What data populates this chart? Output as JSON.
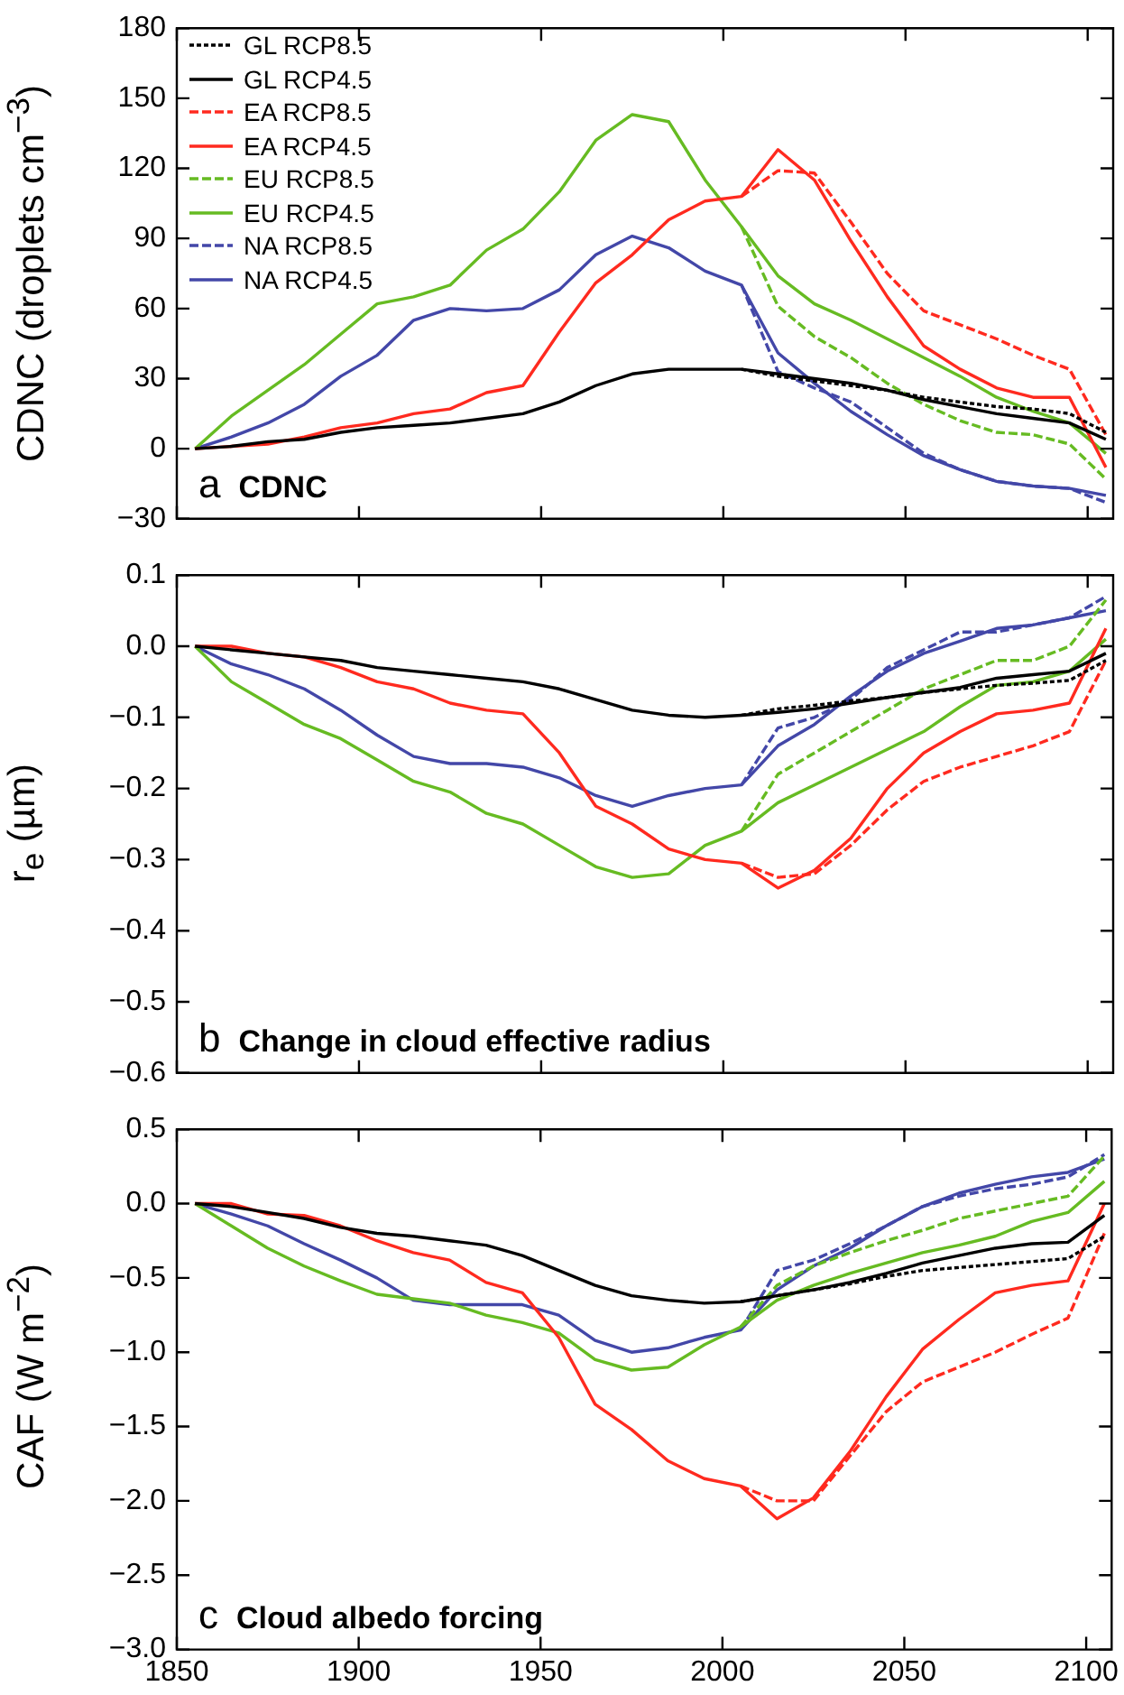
{
  "chart_data": [
    {
      "type": "line",
      "title": "CDNC",
      "ylabel": "CDNC (droplets cm$^{−3}$)",
      "annotations": [
        "a"
      ],
      "legend": "top left",
      "tick_labels": "y",
      "x": [
        1855,
        1865,
        1875,
        1885,
        1895,
        1905,
        1915,
        1925,
        1935,
        1945,
        1955,
        1965,
        1975,
        1985,
        1995,
        2005,
        2015,
        2025,
        2035,
        2045,
        2055,
        2065,
        2075,
        2085,
        2095,
        2105
      ],
      "xlim": [
        1850,
        2107
      ],
      "xticks": [
        1850,
        1900,
        1950,
        2000,
        2050,
        2100
      ],
      "ylim": [
        -30,
        180
      ],
      "yticks": [
        {
          "value": -30,
          "label": "−30"
        },
        0,
        30,
        60,
        90,
        120,
        150,
        180
      ],
      "series": [
        {
          "name": "GL RCP8.5",
          "color": "#000000",
          "line_style": "dotted",
          "x": [
            2005,
            2015,
            2025,
            2035,
            2045,
            2055,
            2065,
            2075,
            2085,
            2095,
            2105
          ],
          "values": [
            34,
            31,
            29,
            27,
            25,
            22,
            20,
            18,
            17,
            15,
            7
          ]
        },
        {
          "name": "GL RCP4.5",
          "color": "#000000",
          "line_style": "solid",
          "values": [
            0,
            1,
            3,
            4,
            7,
            9,
            10,
            11,
            13,
            15,
            20,
            27,
            32,
            34,
            34,
            34,
            32,
            30,
            28,
            25,
            21,
            18,
            15,
            13,
            11,
            4
          ]
        },
        {
          "name": "EA RCP8.5",
          "color": "#ff2a1f",
          "line_style": "dashed",
          "x": [
            2005,
            2015,
            2025,
            2035,
            2045,
            2055,
            2065,
            2075,
            2085,
            2095,
            2105
          ],
          "values": [
            108,
            119,
            118,
            97,
            75,
            59,
            53,
            47,
            40,
            34,
            6
          ]
        },
        {
          "name": "EA RCP4.5",
          "color": "#ff2a1f",
          "line_style": "solid",
          "values": [
            0,
            1,
            2,
            5,
            9,
            11,
            15,
            17,
            24,
            27,
            50,
            71,
            83,
            98,
            106,
            108,
            128,
            115,
            89,
            65,
            44,
            34,
            26,
            22,
            22,
            -8
          ]
        },
        {
          "name": "EU RCP8.5",
          "color": "#66bb22",
          "line_style": "dashed",
          "x": [
            2005,
            2015,
            2025,
            2035,
            2045,
            2055,
            2065,
            2075,
            2085,
            2095,
            2105
          ],
          "values": [
            95,
            61,
            48,
            39,
            28,
            19,
            12,
            7,
            6,
            2,
            -13
          ]
        },
        {
          "name": "EU RCP4.5",
          "color": "#66bb22",
          "line_style": "solid",
          "values": [
            0,
            14,
            25,
            36,
            49,
            62,
            65,
            70,
            85,
            94,
            110,
            132,
            143,
            140,
            115,
            95,
            74,
            62,
            55,
            47,
            39,
            31,
            22,
            16,
            11,
            -2
          ]
        },
        {
          "name": "NA RCP8.5",
          "color": "#4347a8",
          "line_style": "dashed",
          "x": [
            2005,
            2015,
            2025,
            2035,
            2045,
            2055,
            2065,
            2075,
            2085,
            2095,
            2105
          ],
          "values": [
            70,
            33,
            26,
            20,
            9,
            -2,
            -9,
            -14,
            -16,
            -17,
            -23
          ]
        },
        {
          "name": "NA RCP4.5",
          "color": "#4347a8",
          "line_style": "solid",
          "values": [
            0,
            5,
            11,
            19,
            31,
            40,
            55,
            60,
            59,
            60,
            68,
            83,
            91,
            86,
            76,
            70,
            41,
            28,
            16,
            6,
            -3,
            -9,
            -14,
            -16,
            -17,
            -20
          ]
        }
      ]
    },
    {
      "type": "line",
      "title": "Change in cloud effective radius",
      "ylabel": "r$_{e}$ (µm)",
      "annotations": [
        "b"
      ],
      "tick_labels": "y",
      "x": [
        1855,
        1865,
        1875,
        1885,
        1895,
        1905,
        1915,
        1925,
        1935,
        1945,
        1955,
        1965,
        1975,
        1985,
        1995,
        2005,
        2015,
        2025,
        2035,
        2045,
        2055,
        2065,
        2075,
        2085,
        2095,
        2105
      ],
      "xlim": [
        1850,
        2107
      ],
      "xticks": [
        1850,
        1900,
        1950,
        2000,
        2050,
        2100
      ],
      "ylim": [
        -0.6,
        0.1
      ],
      "yticks": [
        {
          "value": -0.6,
          "label": "−0.6"
        },
        {
          "value": -0.5,
          "label": "−0.5"
        },
        {
          "value": -0.4,
          "label": "−0.4"
        },
        {
          "value": -0.3,
          "label": "−0.3"
        },
        {
          "value": -0.2,
          "label": "−0.2"
        },
        {
          "value": -0.1,
          "label": "−0.1"
        },
        {
          "value": 0,
          "label": "0.0"
        },
        0.1
      ],
      "series": [
        {
          "color": "#000000",
          "line_style": "dotted",
          "x": [
            2005,
            2015,
            2025,
            2035,
            2045,
            2055,
            2065,
            2075,
            2085,
            2095,
            2105
          ],
          "values": [
            -0.097,
            -0.088,
            -0.083,
            -0.077,
            -0.072,
            -0.065,
            -0.06,
            -0.055,
            -0.052,
            -0.048,
            -0.02
          ]
        },
        {
          "color": "#000000",
          "line_style": "solid",
          "values": [
            0,
            -0.005,
            -0.01,
            -0.015,
            -0.02,
            -0.03,
            -0.035,
            -0.04,
            -0.045,
            -0.05,
            -0.06,
            -0.075,
            -0.09,
            -0.097,
            -0.1,
            -0.097,
            -0.093,
            -0.088,
            -0.08,
            -0.072,
            -0.065,
            -0.058,
            -0.045,
            -0.04,
            -0.035,
            -0.01
          ]
        },
        {
          "color": "#ff2a1f",
          "line_style": "dashed",
          "x": [
            2005,
            2015,
            2025,
            2035,
            2045,
            2055,
            2065,
            2075,
            2085,
            2095,
            2105
          ],
          "values": [
            -0.305,
            -0.325,
            -0.32,
            -0.28,
            -0.23,
            -0.19,
            -0.17,
            -0.155,
            -0.14,
            -0.12,
            -0.02
          ]
        },
        {
          "color": "#ff2a1f",
          "line_style": "solid",
          "values": [
            0,
            0,
            -0.01,
            -0.015,
            -0.03,
            -0.05,
            -0.06,
            -0.08,
            -0.09,
            -0.095,
            -0.15,
            -0.225,
            -0.25,
            -0.285,
            -0.3,
            -0.305,
            -0.34,
            -0.315,
            -0.27,
            -0.2,
            -0.15,
            -0.12,
            -0.095,
            -0.09,
            -0.08,
            0.025
          ]
        },
        {
          "color": "#66bb22",
          "line_style": "dashed",
          "x": [
            2005,
            2015,
            2025,
            2035,
            2045,
            2055,
            2065,
            2075,
            2085,
            2095,
            2105
          ],
          "values": [
            -0.26,
            -0.18,
            -0.15,
            -0.12,
            -0.09,
            -0.06,
            -0.04,
            -0.02,
            -0.02,
            0,
            0.065
          ]
        },
        {
          "color": "#66bb22",
          "line_style": "solid",
          "values": [
            0,
            -0.05,
            -0.08,
            -0.11,
            -0.13,
            -0.16,
            -0.19,
            -0.205,
            -0.235,
            -0.25,
            -0.28,
            -0.31,
            -0.325,
            -0.32,
            -0.28,
            -0.26,
            -0.22,
            -0.195,
            -0.17,
            -0.145,
            -0.12,
            -0.085,
            -0.055,
            -0.05,
            -0.035,
            0.01
          ]
        },
        {
          "color": "#4347a8",
          "line_style": "dashed",
          "x": [
            2005,
            2015,
            2025,
            2035,
            2045,
            2055,
            2065,
            2075,
            2085,
            2095,
            2105
          ],
          "values": [
            -0.195,
            -0.115,
            -0.1,
            -0.075,
            -0.03,
            -0.005,
            0.02,
            0.02,
            0.03,
            0.04,
            0.07
          ]
        },
        {
          "color": "#4347a8",
          "line_style": "solid",
          "values": [
            0,
            -0.025,
            -0.04,
            -0.06,
            -0.09,
            -0.125,
            -0.155,
            -0.165,
            -0.165,
            -0.17,
            -0.185,
            -0.21,
            -0.225,
            -0.21,
            -0.2,
            -0.195,
            -0.14,
            -0.11,
            -0.07,
            -0.035,
            -0.01,
            0.007,
            0.025,
            0.03,
            0.04,
            0.05
          ]
        }
      ]
    },
    {
      "type": "line",
      "title": "Cloud albedo forcing",
      "ylabel": "CAF (W m$^{−2}$)",
      "annotations": [
        "c"
      ],
      "x": [
        1855,
        1865,
        1875,
        1885,
        1895,
        1905,
        1915,
        1925,
        1935,
        1945,
        1955,
        1965,
        1975,
        1985,
        1995,
        2005,
        2015,
        2025,
        2035,
        2045,
        2055,
        2065,
        2075,
        2085,
        2095,
        2105
      ],
      "xlim": [
        1850,
        2107
      ],
      "xticks": [
        1850,
        1900,
        1950,
        2000,
        2050,
        2100
      ],
      "ylim": [
        -3,
        0.5
      ],
      "yticks": [
        {
          "value": -3,
          "label": "−3.0"
        },
        {
          "value": -2.5,
          "label": "−2.5"
        },
        {
          "value": -2,
          "label": "−2.0"
        },
        {
          "value": -1.5,
          "label": "−1.5"
        },
        {
          "value": -1,
          "label": "−1.0"
        },
        {
          "value": -0.5,
          "label": "−0.5"
        },
        {
          "value": 0,
          "label": "0.0"
        },
        0.5
      ],
      "series": [
        {
          "color": "#000000",
          "line_style": "dotted",
          "x": [
            2005,
            2015,
            2025,
            2035,
            2045,
            2055,
            2065,
            2075,
            2085,
            2095,
            2105
          ],
          "values": [
            -0.66,
            -0.62,
            -0.58,
            -0.54,
            -0.49,
            -0.45,
            -0.43,
            -0.41,
            -0.39,
            -0.37,
            -0.22
          ]
        },
        {
          "color": "#000000",
          "line_style": "solid",
          "values": [
            0,
            -0.02,
            -0.06,
            -0.1,
            -0.16,
            -0.2,
            -0.22,
            -0.25,
            -0.28,
            -0.35,
            -0.45,
            -0.55,
            -0.62,
            -0.65,
            -0.67,
            -0.66,
            -0.62,
            -0.58,
            -0.53,
            -0.47,
            -0.4,
            -0.35,
            -0.3,
            -0.27,
            -0.26,
            -0.08
          ]
        },
        {
          "color": "#ff2a1f",
          "line_style": "dashed",
          "x": [
            2005,
            2015,
            2025,
            2035,
            2045,
            2055,
            2065,
            2075,
            2085,
            2095,
            2105
          ],
          "values": [
            -1.9,
            -2,
            -2,
            -1.7,
            -1.4,
            -1.2,
            -1.1,
            -1,
            -0.88,
            -0.77,
            -0.2
          ]
        },
        {
          "color": "#ff2a1f",
          "line_style": "solid",
          "values": [
            0,
            0,
            -0.07,
            -0.08,
            -0.15,
            -0.25,
            -0.33,
            -0.38,
            -0.53,
            -0.6,
            -0.9,
            -1.35,
            -1.52,
            -1.73,
            -1.85,
            -1.9,
            -2.12,
            -1.98,
            -1.67,
            -1.3,
            -0.98,
            -0.78,
            -0.6,
            -0.55,
            -0.52,
            0
          ]
        },
        {
          "color": "#66bb22",
          "line_style": "dashed",
          "x": [
            2005,
            2015,
            2025,
            2035,
            2045,
            2055,
            2065,
            2075,
            2085,
            2095,
            2105
          ],
          "values": [
            -0.83,
            -0.55,
            -0.42,
            -0.33,
            -0.25,
            -0.18,
            -0.1,
            -0.05,
            0,
            0.05,
            0.32
          ]
        },
        {
          "color": "#66bb22",
          "line_style": "solid",
          "values": [
            0,
            -0.15,
            -0.3,
            -0.42,
            -0.52,
            -0.61,
            -0.64,
            -0.67,
            -0.75,
            -0.8,
            -0.87,
            -1.05,
            -1.12,
            -1.1,
            -0.95,
            -0.83,
            -0.65,
            -0.55,
            -0.47,
            -0.4,
            -0.33,
            -0.28,
            -0.22,
            -0.12,
            -0.06,
            0.15
          ]
        },
        {
          "color": "#4347a8",
          "line_style": "dashed",
          "x": [
            2005,
            2015,
            2025,
            2035,
            2045,
            2055,
            2065,
            2075,
            2085,
            2095,
            2105
          ],
          "values": [
            -0.85,
            -0.45,
            -0.38,
            -0.27,
            -0.15,
            -0.02,
            0.05,
            0.1,
            0.13,
            0.18,
            0.33
          ]
        },
        {
          "color": "#4347a8",
          "line_style": "solid",
          "values": [
            0,
            -0.07,
            -0.15,
            -0.27,
            -0.38,
            -0.5,
            -0.65,
            -0.68,
            -0.68,
            -0.68,
            -0.75,
            -0.92,
            -1,
            -0.97,
            -0.9,
            -0.85,
            -0.58,
            -0.42,
            -0.3,
            -0.15,
            -0.02,
            0.07,
            0.13,
            0.18,
            0.21,
            0.3
          ]
        }
      ]
    }
  ]
}
